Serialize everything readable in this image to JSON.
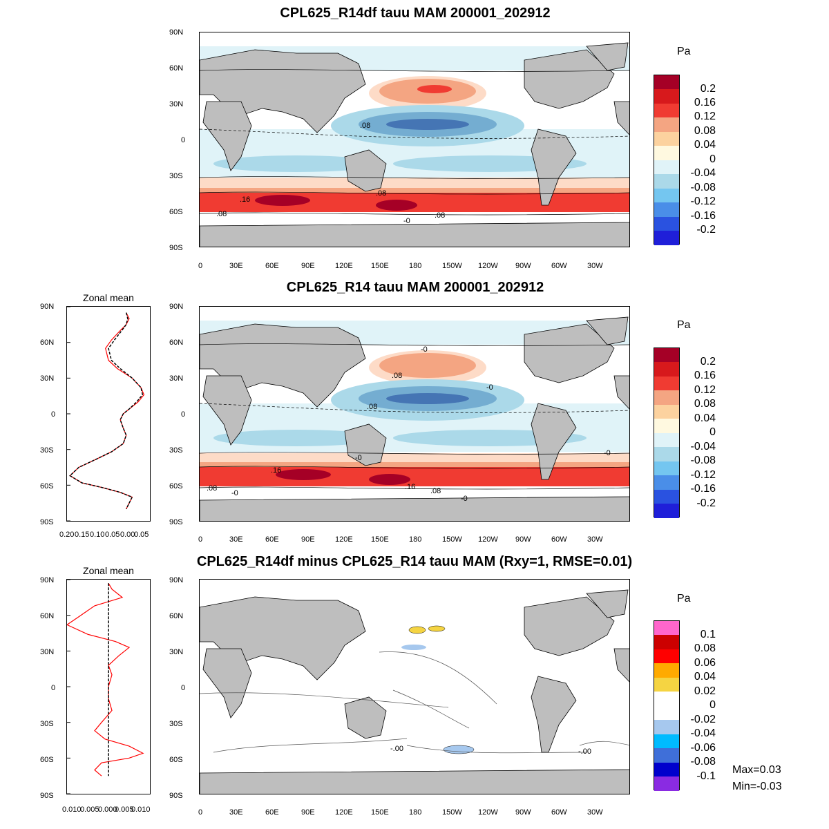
{
  "panels": [
    {
      "title": "CPL625_R14df tauu MAM 200001_202912",
      "unit": "Pa",
      "colorbar_labels": [
        "0.2",
        "0.16",
        "0.12",
        "0.08",
        "0.04",
        "0",
        "-0.04",
        "-0.08",
        "-0.12",
        "-0.16",
        "-0.2"
      ],
      "colorbar_colors": [
        "#a50026",
        "#d7191c",
        "#f03b32",
        "#f4a582",
        "#fddbc7",
        "#ffffff",
        "#e0f3f8",
        "#abd9e9",
        "#74add1",
        "#4575b4",
        "#2222aa",
        "#1111dd"
      ],
      "contour_labels": [
        ".08",
        ".16",
        ".08",
        ".08",
        ".08",
        "-0"
      ]
    },
    {
      "title": "CPL625_R14 tauu MAM 200001_202912",
      "unit": "Pa",
      "colorbar_labels": [
        "0.2",
        "0.16",
        "0.12",
        "0.08",
        "0.04",
        "0",
        "-0.04",
        "-0.08",
        "-0.12",
        "-0.16",
        "-0.2"
      ],
      "contour_labels": [
        "-0",
        ".08",
        "-0",
        ".08",
        "-0",
        "-0",
        ".16",
        ".16",
        ".08",
        ".08",
        "-0",
        "-0"
      ]
    },
    {
      "title": "CPL625_R14df minus CPL625_R14 tauu MAM (Rxy=1, RMSE=0.01)",
      "unit": "Pa",
      "colorbar_labels": [
        "0.1",
        "0.08",
        "0.06",
        "0.04",
        "0.02",
        "0",
        "-0.02",
        "-0.04",
        "-0.06",
        "-0.08",
        "-0.1"
      ],
      "colorbar_colors": [
        "#ff66cc",
        "#cc0000",
        "#ff0000",
        "#ffaa00",
        "#f5d442",
        "#ffffff",
        "#ffffff",
        "#a6c8ee",
        "#00bbff",
        "#3f6fd9",
        "#0000cc",
        "#8a2be2"
      ],
      "contour_labels": [
        "-.00",
        "-.00"
      ],
      "stats": {
        "max": "Max=0.03",
        "min": "Min=-0.03"
      }
    }
  ],
  "map_axes": {
    "lat_labels": [
      "90N",
      "60N",
      "30N",
      "0",
      "30S",
      "60S",
      "90S"
    ],
    "lon_labels": [
      "0",
      "30E",
      "60E",
      "90E",
      "120E",
      "150E",
      "180",
      "150W",
      "120W",
      "90W",
      "60W",
      "30W"
    ]
  },
  "zonal_mean": {
    "title": "Zonal mean",
    "panel2_xticks": [
      "0.20",
      "0.15",
      "0.10",
      "0.05",
      "0.00",
      "0.05"
    ],
    "panel3_xticks": [
      "0.010",
      "0.005",
      "0.000",
      "0.005",
      "0.010"
    ]
  },
  "chart_data": [
    {
      "type": "line",
      "title": "Zonal mean",
      "ylabel": "",
      "xlabel": "",
      "ylim": [
        -90,
        90
      ],
      "xlim": [
        -0.2,
        0.08
      ],
      "series": [
        {
          "color": "#ff0000",
          "style": "solid",
          "points": [
            [
              0.0,
              85
            ],
            [
              0.01,
              80
            ],
            [
              0.0,
              75
            ],
            [
              -0.02,
              70
            ],
            [
              -0.05,
              62
            ],
            [
              -0.07,
              55
            ],
            [
              -0.06,
              45
            ],
            [
              -0.03,
              38
            ],
            [
              0.02,
              30
            ],
            [
              0.05,
              22
            ],
            [
              0.06,
              16
            ],
            [
              0.04,
              10
            ],
            [
              0.01,
              4
            ],
            [
              -0.01,
              0
            ],
            [
              -0.02,
              -5
            ],
            [
              -0.01,
              -12
            ],
            [
              0.0,
              -18
            ],
            [
              -0.01,
              -25
            ],
            [
              -0.05,
              -32
            ],
            [
              -0.1,
              -38
            ],
            [
              -0.16,
              -45
            ],
            [
              -0.19,
              -52
            ],
            [
              -0.15,
              -58
            ],
            [
              -0.08,
              -62
            ],
            [
              -0.02,
              -66
            ],
            [
              0.02,
              -70
            ],
            [
              0.01,
              -75
            ],
            [
              0.0,
              -80
            ]
          ]
        },
        {
          "color": "#000000",
          "style": "dashed",
          "points": [
            [
              0.0,
              85
            ],
            [
              0.005,
              80
            ],
            [
              0.0,
              75
            ],
            [
              -0.015,
              70
            ],
            [
              -0.04,
              62
            ],
            [
              -0.06,
              55
            ],
            [
              -0.05,
              45
            ],
            [
              -0.02,
              38
            ],
            [
              0.02,
              30
            ],
            [
              0.05,
              22
            ],
            [
              0.055,
              16
            ],
            [
              0.035,
              10
            ],
            [
              0.01,
              4
            ],
            [
              -0.01,
              0
            ],
            [
              -0.02,
              -5
            ],
            [
              -0.01,
              -12
            ],
            [
              0.0,
              -18
            ],
            [
              -0.01,
              -25
            ],
            [
              -0.05,
              -32
            ],
            [
              -0.1,
              -38
            ],
            [
              -0.16,
              -45
            ],
            [
              -0.19,
              -52
            ],
            [
              -0.15,
              -58
            ],
            [
              -0.08,
              -62
            ],
            [
              -0.02,
              -66
            ],
            [
              0.02,
              -70
            ],
            [
              0.01,
              -75
            ],
            [
              0.0,
              -80
            ]
          ]
        }
      ]
    },
    {
      "type": "line",
      "title": "Zonal mean",
      "ylabel": "",
      "xlabel": "",
      "ylim": [
        -90,
        90
      ],
      "xlim": [
        -0.012,
        0.012
      ],
      "series": [
        {
          "color": "#ff0000",
          "style": "solid",
          "points": [
            [
              0.0,
              87
            ],
            [
              0.001,
              82
            ],
            [
              0.004,
              75
            ],
            [
              -0.004,
              68
            ],
            [
              -0.008,
              60
            ],
            [
              -0.012,
              52
            ],
            [
              -0.006,
              44
            ],
            [
              0.002,
              38
            ],
            [
              0.006,
              33
            ],
            [
              0.003,
              26
            ],
            [
              0.0,
              18
            ],
            [
              0.001,
              10
            ],
            [
              0.0,
              0
            ],
            [
              0.0,
              -10
            ],
            [
              0.001,
              -20
            ],
            [
              -0.002,
              -30
            ],
            [
              -0.004,
              -37
            ],
            [
              -0.001,
              -44
            ],
            [
              0.006,
              -50
            ],
            [
              0.01,
              -56
            ],
            [
              0.006,
              -60
            ],
            [
              -0.002,
              -64
            ],
            [
              -0.004,
              -70
            ],
            [
              -0.002,
              -75
            ]
          ]
        },
        {
          "color": "#000000",
          "style": "dashed",
          "points": [
            [
              0.0,
              87
            ],
            [
              0.0,
              -75
            ]
          ]
        }
      ]
    }
  ]
}
